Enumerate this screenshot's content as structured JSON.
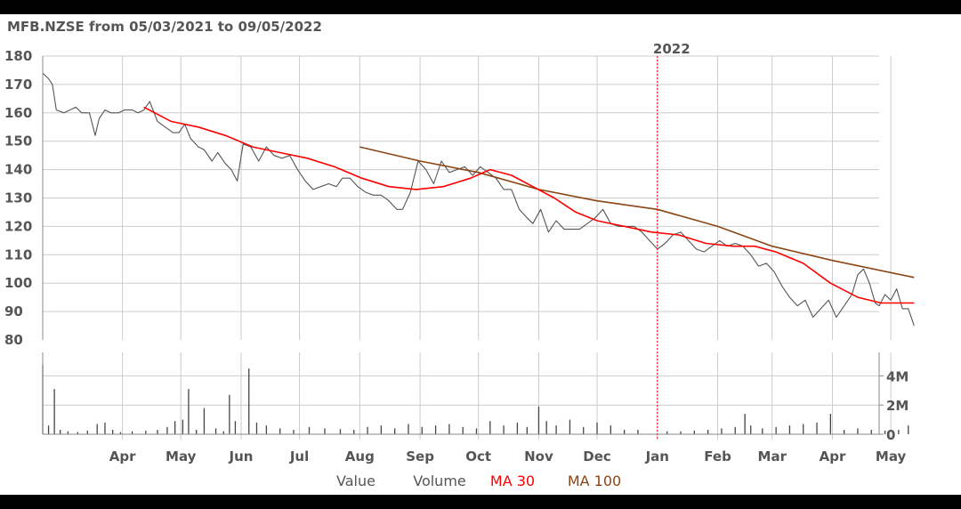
{
  "chart_data": {
    "type": "line",
    "title": "MFB.NZSE from 05/03/2021 to 09/05/2022",
    "xlabel": "",
    "ylabel": "",
    "ylim": [
      80,
      180
    ],
    "yticks": [
      180,
      170,
      160,
      150,
      140,
      130,
      120,
      110,
      100,
      90,
      80
    ],
    "volume_ticks": [
      "4M",
      "2M",
      "0"
    ],
    "volume_ylim": [
      0,
      5000000
    ],
    "x_range": [
      "2021-03-05",
      "2022-05-09"
    ],
    "month_ticks": [
      {
        "label": "Apr",
        "date": "2021-04-15"
      },
      {
        "label": "May",
        "date": "2021-05-15"
      },
      {
        "label": "Jun",
        "date": "2021-06-15"
      },
      {
        "label": "Jul",
        "date": "2021-07-15"
      },
      {
        "label": "Aug",
        "date": "2021-08-15"
      },
      {
        "label": "Sep",
        "date": "2021-09-15"
      },
      {
        "label": "Oct",
        "date": "2021-10-15"
      },
      {
        "label": "Nov",
        "date": "2021-11-15"
      },
      {
        "label": "Dec",
        "date": "2021-12-15"
      },
      {
        "label": "Jan",
        "date": "2022-01-15"
      },
      {
        "label": "Feb",
        "date": "2022-02-15"
      },
      {
        "label": "Mar",
        "date": "2022-03-15"
      },
      {
        "label": "Apr",
        "date": "2022-04-15"
      },
      {
        "label": "May",
        "date": "2022-05-15"
      }
    ],
    "year_marker": {
      "label": "2022",
      "date": "2022-01-15"
    },
    "legend": [
      "Value",
      "Volume",
      "MA 30",
      "MA 100"
    ],
    "legend_position": "bottom",
    "grid": true,
    "colors": {
      "value": "#555555",
      "volume": "#444444",
      "ma30": "#ff0000",
      "ma100": "#8b4513",
      "year_line": "#ff0000",
      "grid": "#cccccc",
      "text": "#555555"
    },
    "series": [
      {
        "name": "Value",
        "points": [
          [
            "2021-03-05",
            174
          ],
          [
            "2021-03-08",
            172
          ],
          [
            "2021-03-10",
            170
          ],
          [
            "2021-03-12",
            161
          ],
          [
            "2021-03-16",
            160
          ],
          [
            "2021-03-19",
            161
          ],
          [
            "2021-03-22",
            162
          ],
          [
            "2021-03-25",
            160
          ],
          [
            "2021-03-29",
            160
          ],
          [
            "2021-04-01",
            152
          ],
          [
            "2021-04-03",
            158
          ],
          [
            "2021-04-06",
            161
          ],
          [
            "2021-04-09",
            160
          ],
          [
            "2021-04-13",
            160
          ],
          [
            "2021-04-16",
            161
          ],
          [
            "2021-04-20",
            161
          ],
          [
            "2021-04-23",
            160
          ],
          [
            "2021-04-26",
            161
          ],
          [
            "2021-04-29",
            164
          ],
          [
            "2021-05-03",
            157
          ],
          [
            "2021-05-07",
            155
          ],
          [
            "2021-05-11",
            153
          ],
          [
            "2021-05-14",
            153
          ],
          [
            "2021-05-17",
            156
          ],
          [
            "2021-05-20",
            151
          ],
          [
            "2021-05-24",
            148
          ],
          [
            "2021-05-27",
            147
          ],
          [
            "2021-05-31",
            143
          ],
          [
            "2021-06-03",
            146
          ],
          [
            "2021-06-07",
            142
          ],
          [
            "2021-06-10",
            140
          ],
          [
            "2021-06-13",
            136
          ],
          [
            "2021-06-16",
            149
          ],
          [
            "2021-06-20",
            148
          ],
          [
            "2021-06-24",
            143
          ],
          [
            "2021-06-28",
            148
          ],
          [
            "2021-07-02",
            145
          ],
          [
            "2021-07-06",
            144
          ],
          [
            "2021-07-10",
            145
          ],
          [
            "2021-07-14",
            140
          ],
          [
            "2021-07-18",
            136
          ],
          [
            "2021-07-22",
            133
          ],
          [
            "2021-07-26",
            134
          ],
          [
            "2021-07-30",
            135
          ],
          [
            "2021-08-03",
            134
          ],
          [
            "2021-08-06",
            137
          ],
          [
            "2021-08-10",
            137
          ],
          [
            "2021-08-14",
            134
          ],
          [
            "2021-08-18",
            132
          ],
          [
            "2021-08-22",
            131
          ],
          [
            "2021-08-26",
            131
          ],
          [
            "2021-08-30",
            129
          ],
          [
            "2021-09-03",
            126
          ],
          [
            "2021-09-06",
            126
          ],
          [
            "2021-09-10",
            132
          ],
          [
            "2021-09-14",
            143
          ],
          [
            "2021-09-18",
            140
          ],
          [
            "2021-09-22",
            135
          ],
          [
            "2021-09-26",
            143
          ],
          [
            "2021-09-30",
            139
          ],
          [
            "2021-10-04",
            140
          ],
          [
            "2021-10-08",
            141
          ],
          [
            "2021-10-12",
            138
          ],
          [
            "2021-10-16",
            141
          ],
          [
            "2021-10-20",
            139
          ],
          [
            "2021-10-24",
            137
          ],
          [
            "2021-10-28",
            133
          ],
          [
            "2021-11-01",
            133
          ],
          [
            "2021-11-05",
            126
          ],
          [
            "2021-11-09",
            123
          ],
          [
            "2021-11-12",
            121
          ],
          [
            "2021-11-16",
            126
          ],
          [
            "2021-11-20",
            118
          ],
          [
            "2021-11-24",
            122
          ],
          [
            "2021-11-28",
            119
          ],
          [
            "2021-12-02",
            119
          ],
          [
            "2021-12-06",
            119
          ],
          [
            "2021-12-10",
            121
          ],
          [
            "2021-12-14",
            123
          ],
          [
            "2021-12-18",
            126
          ],
          [
            "2021-12-22",
            121
          ],
          [
            "2021-12-26",
            120
          ],
          [
            "2021-12-30",
            120
          ],
          [
            "2022-01-03",
            120
          ],
          [
            "2022-01-07",
            118
          ],
          [
            "2022-01-11",
            115
          ],
          [
            "2022-01-15",
            112
          ],
          [
            "2022-01-19",
            114
          ],
          [
            "2022-01-23",
            117
          ],
          [
            "2022-01-27",
            118
          ],
          [
            "2022-01-31",
            115
          ],
          [
            "2022-02-04",
            112
          ],
          [
            "2022-02-08",
            111
          ],
          [
            "2022-02-12",
            113
          ],
          [
            "2022-02-16",
            115
          ],
          [
            "2022-02-20",
            113
          ],
          [
            "2022-02-24",
            114
          ],
          [
            "2022-02-28",
            113
          ],
          [
            "2022-03-04",
            110
          ],
          [
            "2022-03-08",
            106
          ],
          [
            "2022-03-12",
            107
          ],
          [
            "2022-03-16",
            104
          ],
          [
            "2022-03-20",
            99
          ],
          [
            "2022-03-24",
            95
          ],
          [
            "2022-03-28",
            92
          ],
          [
            "2022-04-01",
            94
          ],
          [
            "2022-04-05",
            88
          ],
          [
            "2022-04-09",
            91
          ],
          [
            "2022-04-13",
            94
          ],
          [
            "2022-04-17",
            88
          ],
          [
            "2022-04-21",
            92
          ],
          [
            "2022-04-25",
            96
          ],
          [
            "2022-04-28",
            103
          ],
          [
            "2022-05-01",
            105
          ],
          [
            "2022-05-04",
            100
          ],
          [
            "2022-05-07",
            93
          ],
          [
            "2022-05-09",
            92
          ],
          [
            "2022-05-12",
            96
          ],
          [
            "2022-05-15",
            94
          ],
          [
            "2022-05-18",
            98
          ],
          [
            "2022-05-21",
            91
          ],
          [
            "2022-05-24",
            91
          ],
          [
            "2022-05-27",
            85
          ]
        ]
      },
      {
        "name": "MA 30",
        "points": [
          [
            "2021-04-26",
            162
          ],
          [
            "2021-05-10",
            157
          ],
          [
            "2021-05-24",
            155
          ],
          [
            "2021-06-07",
            152
          ],
          [
            "2021-06-21",
            148
          ],
          [
            "2021-07-05",
            146
          ],
          [
            "2021-07-19",
            144
          ],
          [
            "2021-08-02",
            141
          ],
          [
            "2021-08-16",
            137
          ],
          [
            "2021-08-30",
            134
          ],
          [
            "2021-09-13",
            133
          ],
          [
            "2021-09-27",
            134
          ],
          [
            "2021-10-11",
            137
          ],
          [
            "2021-10-21",
            140
          ],
          [
            "2021-11-01",
            138
          ],
          [
            "2021-11-12",
            134
          ],
          [
            "2021-11-23",
            130
          ],
          [
            "2021-12-04",
            125
          ],
          [
            "2021-12-15",
            122
          ],
          [
            "2021-12-29",
            120
          ],
          [
            "2022-01-12",
            118
          ],
          [
            "2022-01-26",
            117
          ],
          [
            "2022-02-09",
            114
          ],
          [
            "2022-02-23",
            113
          ],
          [
            "2022-03-06",
            113
          ],
          [
            "2022-03-17",
            111
          ],
          [
            "2022-03-31",
            107
          ],
          [
            "2022-04-14",
            100
          ],
          [
            "2022-04-28",
            95
          ],
          [
            "2022-05-10",
            93
          ],
          [
            "2022-05-27",
            93
          ]
        ]
      },
      {
        "name": "MA 100",
        "points": [
          [
            "2021-08-15",
            148
          ],
          [
            "2021-09-15",
            143
          ],
          [
            "2021-10-15",
            139
          ],
          [
            "2021-11-15",
            133
          ],
          [
            "2021-12-15",
            129
          ],
          [
            "2022-01-15",
            126
          ],
          [
            "2022-02-15",
            120
          ],
          [
            "2022-03-15",
            113
          ],
          [
            "2022-04-15",
            108
          ],
          [
            "2022-05-27",
            102
          ]
        ]
      },
      {
        "name": "Volume",
        "points": [
          [
            "2021-03-05",
            4800000
          ],
          [
            "2021-03-08",
            600000
          ],
          [
            "2021-03-11",
            3100000
          ],
          [
            "2021-03-14",
            300000
          ],
          [
            "2021-03-18",
            200000
          ],
          [
            "2021-03-23",
            150000
          ],
          [
            "2021-03-28",
            250000
          ],
          [
            "2021-04-02",
            700000
          ],
          [
            "2021-04-06",
            800000
          ],
          [
            "2021-04-10",
            300000
          ],
          [
            "2021-04-14",
            150000
          ],
          [
            "2021-04-20",
            200000
          ],
          [
            "2021-04-27",
            250000
          ],
          [
            "2021-05-03",
            300000
          ],
          [
            "2021-05-08",
            500000
          ],
          [
            "2021-05-12",
            900000
          ],
          [
            "2021-05-16",
            1000000
          ],
          [
            "2021-05-19",
            3100000
          ],
          [
            "2021-05-23",
            300000
          ],
          [
            "2021-05-27",
            1800000
          ],
          [
            "2021-06-02",
            400000
          ],
          [
            "2021-06-06",
            200000
          ],
          [
            "2021-06-09",
            2700000
          ],
          [
            "2021-06-12",
            900000
          ],
          [
            "2021-06-19",
            4500000
          ],
          [
            "2021-06-23",
            800000
          ],
          [
            "2021-06-28",
            600000
          ],
          [
            "2021-07-05",
            400000
          ],
          [
            "2021-07-12",
            300000
          ],
          [
            "2021-07-20",
            500000
          ],
          [
            "2021-07-28",
            400000
          ],
          [
            "2021-08-05",
            350000
          ],
          [
            "2021-08-12",
            300000
          ],
          [
            "2021-08-19",
            500000
          ],
          [
            "2021-08-26",
            600000
          ],
          [
            "2021-09-02",
            400000
          ],
          [
            "2021-09-09",
            700000
          ],
          [
            "2021-09-16",
            500000
          ],
          [
            "2021-09-23",
            600000
          ],
          [
            "2021-09-30",
            700000
          ],
          [
            "2021-10-07",
            500000
          ],
          [
            "2021-10-14",
            400000
          ],
          [
            "2021-10-21",
            900000
          ],
          [
            "2021-10-28",
            600000
          ],
          [
            "2021-11-04",
            800000
          ],
          [
            "2021-11-09",
            500000
          ],
          [
            "2021-11-15",
            1900000
          ],
          [
            "2021-11-19",
            900000
          ],
          [
            "2021-11-24",
            600000
          ],
          [
            "2021-12-01",
            1000000
          ],
          [
            "2021-12-08",
            500000
          ],
          [
            "2021-12-15",
            800000
          ],
          [
            "2021-12-22",
            600000
          ],
          [
            "2021-12-29",
            300000
          ],
          [
            "2022-01-05",
            300000
          ],
          [
            "2022-01-20",
            200000
          ],
          [
            "2022-01-27",
            200000
          ],
          [
            "2022-02-03",
            250000
          ],
          [
            "2022-02-10",
            300000
          ],
          [
            "2022-02-17",
            400000
          ],
          [
            "2022-02-24",
            500000
          ],
          [
            "2022-03-01",
            1400000
          ],
          [
            "2022-03-04",
            600000
          ],
          [
            "2022-03-10",
            400000
          ],
          [
            "2022-03-17",
            500000
          ],
          [
            "2022-03-24",
            600000
          ],
          [
            "2022-03-31",
            700000
          ],
          [
            "2022-04-07",
            800000
          ],
          [
            "2022-04-14",
            1400000
          ],
          [
            "2022-04-21",
            300000
          ],
          [
            "2022-04-28",
            400000
          ],
          [
            "2022-05-05",
            300000
          ],
          [
            "2022-05-12",
            250000
          ],
          [
            "2022-05-19",
            300000
          ],
          [
            "2022-05-24",
            600000
          ]
        ]
      }
    ]
  }
}
